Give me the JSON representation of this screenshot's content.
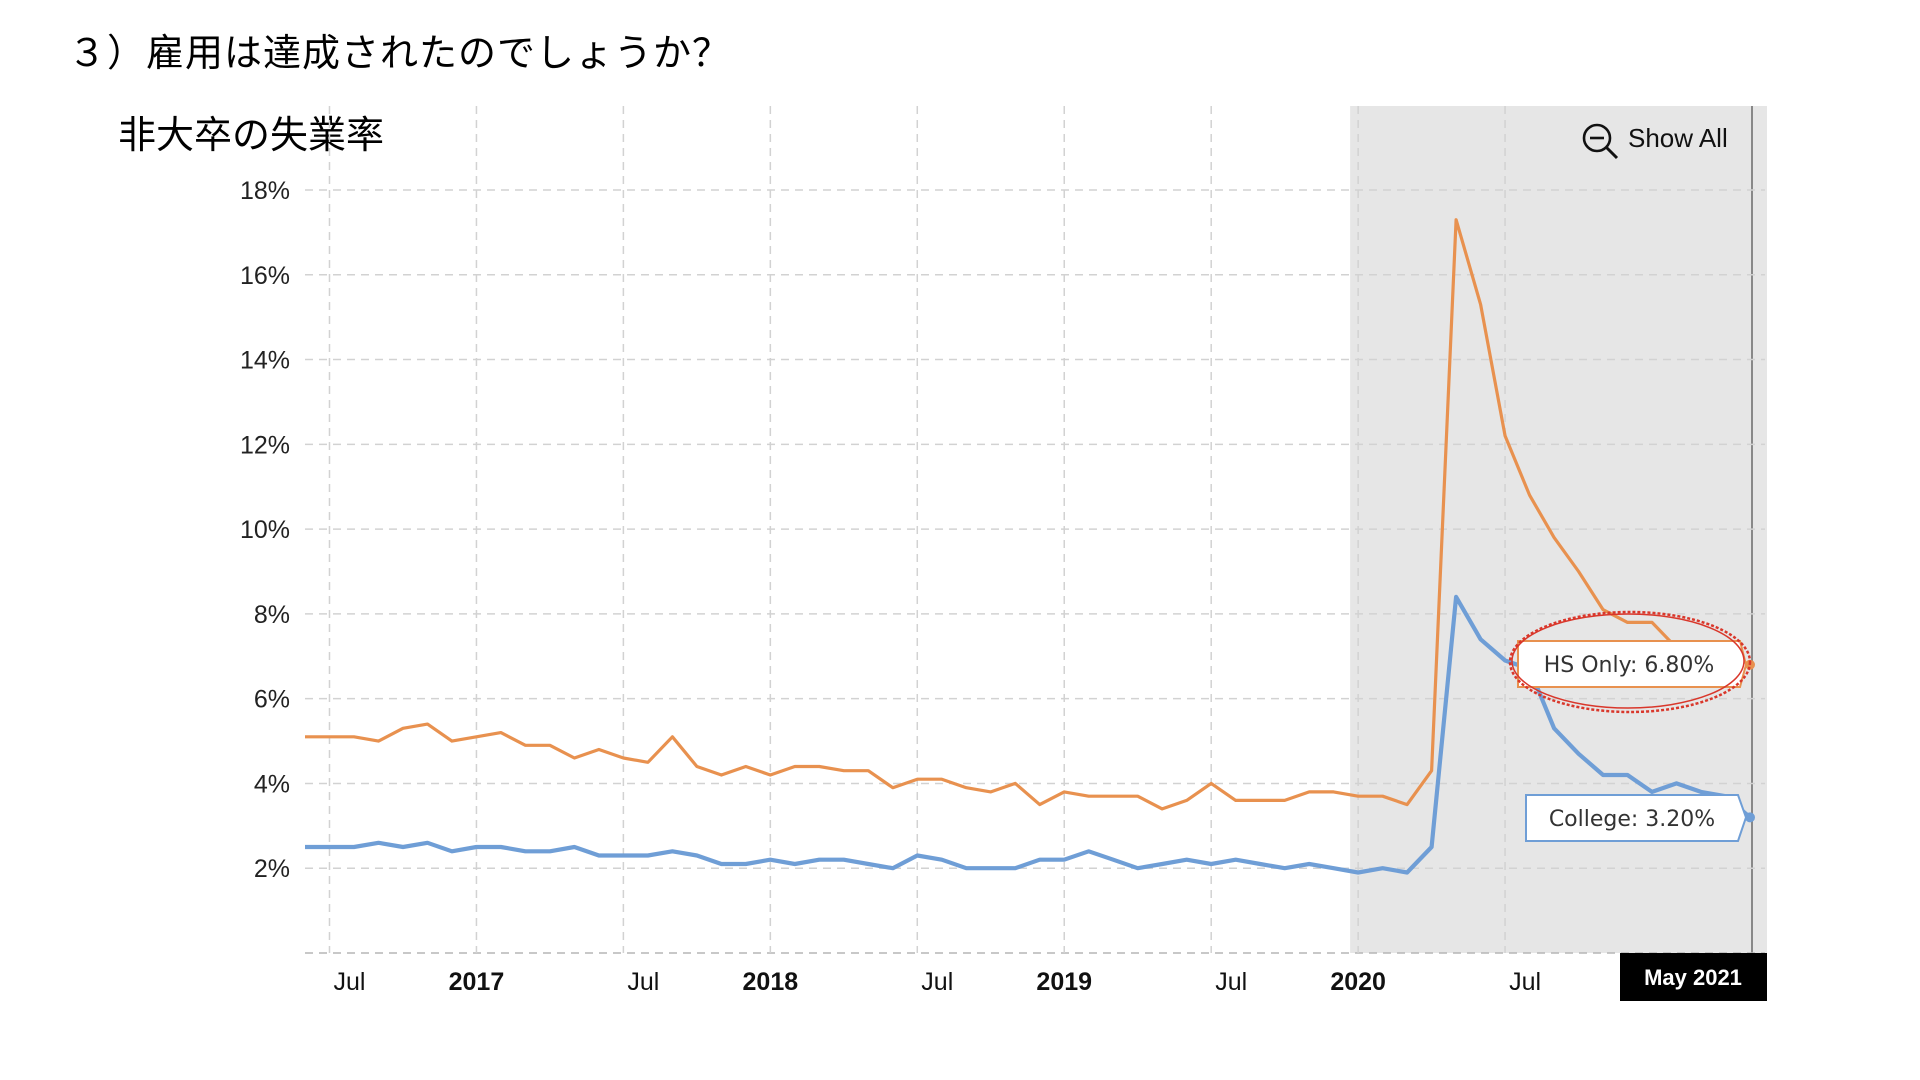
{
  "heading": "３）雇用は達成されたのでしょうか？",
  "chart_data": {
    "type": "line",
    "title": "非大卒の失業率",
    "xlabel": "",
    "ylabel": "",
    "ylim": [
      0,
      18
    ],
    "y_ticks": [
      "2%",
      "4%",
      "6%",
      "8%",
      "10%",
      "12%",
      "14%",
      "16%",
      "18%"
    ],
    "x_ticks": [
      {
        "label": "Jul",
        "date": "2016-07",
        "bold": false
      },
      {
        "label": "2017",
        "date": "2017-01",
        "bold": true
      },
      {
        "label": "Jul",
        "date": "2017-07",
        "bold": false
      },
      {
        "label": "2018",
        "date": "2018-01",
        "bold": true
      },
      {
        "label": "Jul",
        "date": "2018-07",
        "bold": false
      },
      {
        "label": "2019",
        "date": "2019-01",
        "bold": true
      },
      {
        "label": "Jul",
        "date": "2019-07",
        "bold": false
      },
      {
        "label": "2020",
        "date": "2020-01",
        "bold": true
      },
      {
        "label": "Jul",
        "date": "2020-07",
        "bold": false
      }
    ],
    "end_label": "May 2021",
    "grid": true,
    "zoom_button": "Show All",
    "x": [
      "2016-06",
      "2016-07",
      "2016-08",
      "2016-09",
      "2016-10",
      "2016-11",
      "2016-12",
      "2017-01",
      "2017-02",
      "2017-03",
      "2017-04",
      "2017-05",
      "2017-06",
      "2017-07",
      "2017-08",
      "2017-09",
      "2017-10",
      "2017-11",
      "2017-12",
      "2018-01",
      "2018-02",
      "2018-03",
      "2018-04",
      "2018-05",
      "2018-06",
      "2018-07",
      "2018-08",
      "2018-09",
      "2018-10",
      "2018-11",
      "2018-12",
      "2019-01",
      "2019-02",
      "2019-03",
      "2019-04",
      "2019-05",
      "2019-06",
      "2019-07",
      "2019-08",
      "2019-09",
      "2019-10",
      "2019-11",
      "2019-12",
      "2020-01",
      "2020-02",
      "2020-03",
      "2020-04",
      "2020-05",
      "2020-06",
      "2020-07",
      "2020-08",
      "2020-09",
      "2020-10",
      "2020-11",
      "2020-12",
      "2021-01",
      "2021-02",
      "2021-03",
      "2021-04",
      "2021-05"
    ],
    "series": [
      {
        "name": "HS Only",
        "color": "#e8914f",
        "values": [
          5.1,
          5.1,
          5.1,
          5.0,
          5.3,
          5.4,
          5.0,
          5.1,
          5.2,
          4.9,
          4.9,
          4.6,
          4.8,
          4.6,
          4.5,
          5.1,
          4.4,
          4.2,
          4.4,
          4.2,
          4.4,
          4.4,
          4.3,
          4.3,
          3.9,
          4.1,
          4.1,
          3.9,
          3.8,
          4.0,
          3.5,
          3.8,
          3.7,
          3.7,
          3.7,
          3.4,
          3.6,
          4.0,
          3.6,
          3.6,
          3.6,
          3.8,
          3.8,
          3.7,
          3.7,
          3.5,
          4.3,
          17.3,
          15.3,
          12.2,
          10.8,
          9.8,
          9.0,
          8.1,
          7.8,
          7.8,
          7.2,
          6.9,
          6.8,
          6.8
        ],
        "callout": "HS Only: 6.80%"
      },
      {
        "name": "College",
        "color": "#6f9ed6",
        "values": [
          2.5,
          2.5,
          2.5,
          2.6,
          2.5,
          2.6,
          2.4,
          2.5,
          2.5,
          2.4,
          2.4,
          2.5,
          2.3,
          2.3,
          2.3,
          2.4,
          2.3,
          2.1,
          2.1,
          2.2,
          2.1,
          2.2,
          2.2,
          2.1,
          2.0,
          2.3,
          2.2,
          2.0,
          2.0,
          2.0,
          2.2,
          2.2,
          2.4,
          2.2,
          2.0,
          2.1,
          2.2,
          2.1,
          2.2,
          2.1,
          2.0,
          2.1,
          2.0,
          1.9,
          2.0,
          1.9,
          2.5,
          8.4,
          7.4,
          6.9,
          6.7,
          5.3,
          4.7,
          4.2,
          4.2,
          3.8,
          4.0,
          3.8,
          3.7,
          3.2
        ],
        "callout": "College: 3.20%"
      }
    ]
  }
}
